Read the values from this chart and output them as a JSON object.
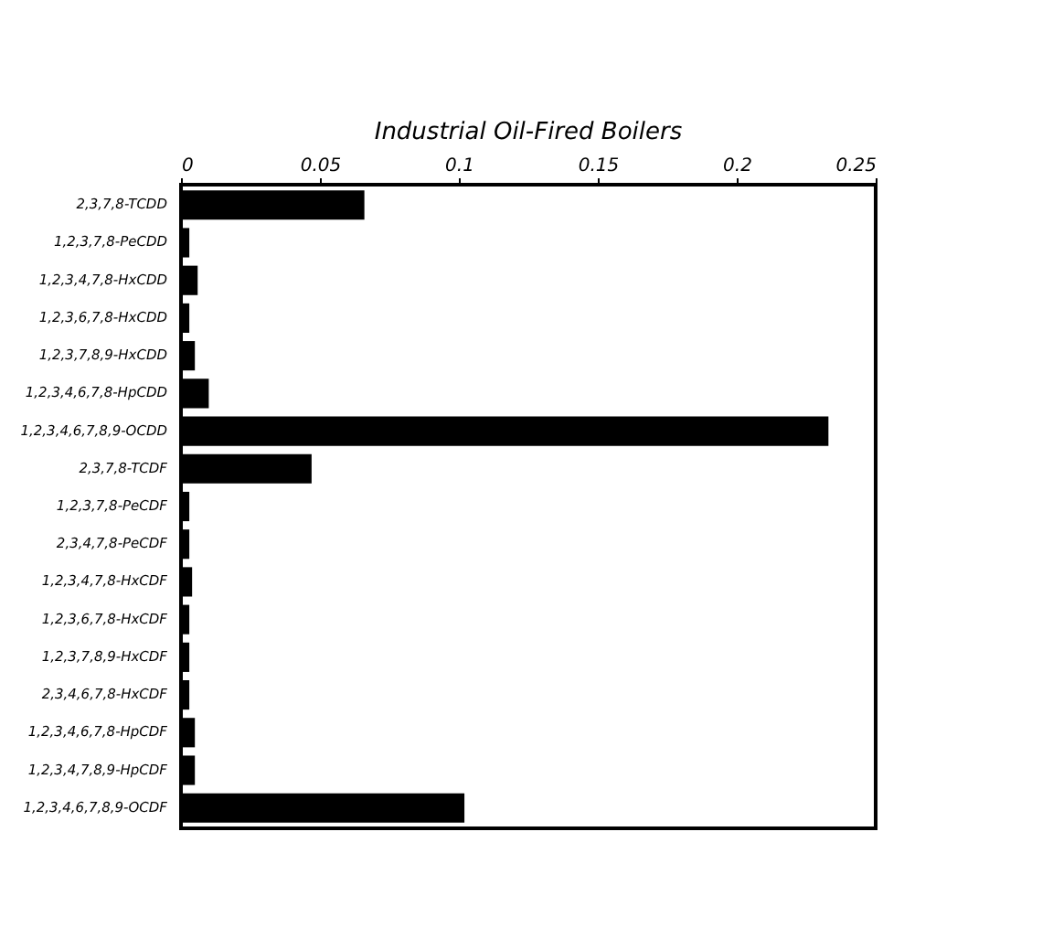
{
  "chart_data": {
    "type": "bar",
    "orientation": "horizontal",
    "title": "Industrial Oil-Fired Boilers",
    "categories": [
      "2,3,7,8-TCDD",
      "1,2,3,7,8-PeCDD",
      "1,2,3,4,7,8-HxCDD",
      "1,2,3,6,7,8-HxCDD",
      "1,2,3,7,8,9-HxCDD",
      "1,2,3,4,6,7,8-HpCDD",
      "1,2,3,4,6,7,8,9-OCDD",
      "2,3,7,8-TCDF",
      "1,2,3,7,8-PeCDF",
      "2,3,4,7,8-PeCDF",
      "1,2,3,4,7,8-HxCDF",
      "1,2,3,6,7,8-HxCDF",
      "1,2,3,7,8,9-HxCDF",
      "2,3,4,6,7,8-HxCDF",
      "1,2,3,4,6,7,8-HpCDF",
      "1,2,3,4,7,8,9-HpCDF",
      "1,2,3,4,6,7,8,9-OCDF"
    ],
    "values": [
      0.066,
      0.003,
      0.006,
      0.003,
      0.005,
      0.01,
      0.233,
      0.047,
      0.003,
      0.003,
      0.004,
      0.003,
      0.003,
      0.003,
      0.005,
      0.005,
      0.102
    ],
    "color": "#000000",
    "xlim": [
      0,
      0.25
    ],
    "xticks": [
      0,
      0.05,
      0.1,
      0.15,
      0.2,
      0.25
    ],
    "grid": false
  }
}
